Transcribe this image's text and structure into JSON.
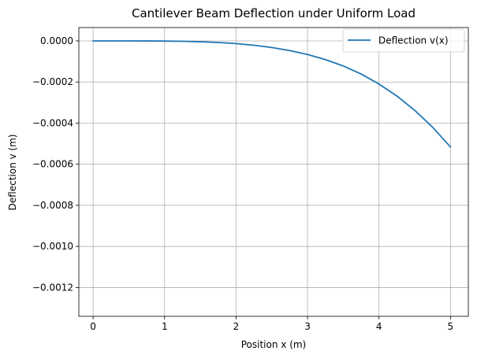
{
  "chart_data": {
    "type": "line",
    "title": "Cantilever Beam Deflection under Uniform Load",
    "xlabel": "Position x (m)",
    "ylabel": "Deflection v (m)",
    "xlim": [
      -0.2,
      5.25
    ],
    "ylim": [
      -0.00134,
      6.5e-05
    ],
    "grid": true,
    "legend_position": "top-right",
    "x_ticks": [
      0,
      1,
      2,
      3,
      4,
      5
    ],
    "x_tick_labels": [
      "0",
      "1",
      "2",
      "3",
      "4",
      "5"
    ],
    "y_ticks": [
      0.0,
      -0.0002,
      -0.0004,
      -0.0006,
      -0.0008,
      -0.001,
      -0.0012
    ],
    "y_tick_labels": [
      "0.0000",
      "−0.0002",
      "−0.0004",
      "−0.0006",
      "−0.0008",
      "−0.0010",
      "−0.0012"
    ],
    "series": [
      {
        "name": "Deflection v(x)",
        "color": "#1f77b4",
        "x": [
          0,
          0.25,
          0.5,
          0.75,
          1.0,
          1.25,
          1.5,
          1.75,
          2.0,
          2.25,
          2.5,
          2.75,
          3.0,
          3.25,
          3.5,
          3.75,
          4.0,
          4.25,
          4.5,
          4.75,
          5.0
        ],
        "y": [
          0.0,
          -3.3e-09,
          -5.2e-08,
          -2.6e-07,
          -8.3e-07,
          -2e-06,
          -4.2e-06,
          -7.8e-06,
          -1.3e-05,
          -2.1e-05,
          -3.2e-05,
          -4.7e-05,
          -6.6e-05,
          -9.1e-05,
          -0.000122,
          -0.000161,
          -0.00021,
          -0.000268,
          -0.000338,
          -0.00042,
          -0.000516
        ]
      }
    ]
  }
}
